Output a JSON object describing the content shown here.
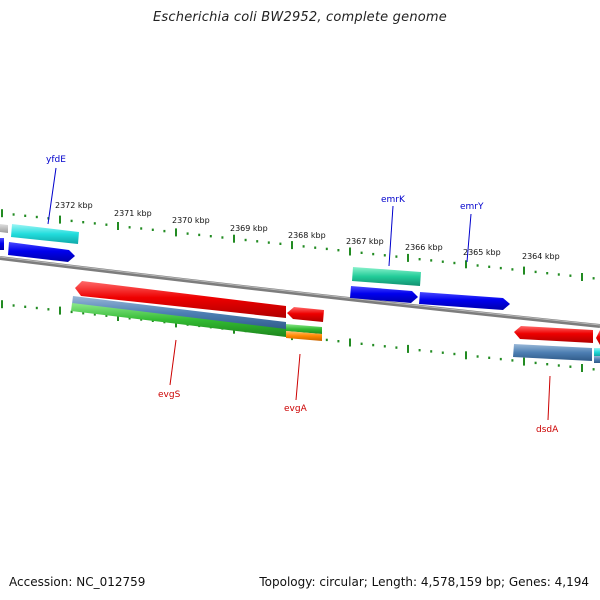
{
  "header": {
    "title": "Escherichia coli BW2952, complete genome"
  },
  "footer": {
    "accession": "Accession: NC_012759",
    "summary": "Topology: circular; Length: 4,578,159 bp; Genes: 4,194"
  },
  "ticks": [
    "2372 kbp",
    "2371 kbp",
    "2370 kbp",
    "2369 kbp",
    "2368 kbp",
    "2367 kbp",
    "2366 kbp",
    "2365 kbp",
    "2364 kbp"
  ],
  "labels": {
    "yfdE": "yfdE",
    "emrK": "emrK",
    "emrY": "emrY",
    "evgS": "evgS",
    "evgA": "evgA",
    "dsdA": "dsdA"
  },
  "colors": {
    "forward_label": "#0000cc",
    "reverse_label": "#cc0000",
    "tick": "#228b22",
    "backbone": "#808080",
    "gene_red": "#ee0000",
    "gene_blue": "#0000ee",
    "gene_cyan": "#22dddd",
    "gene_teal": "#22cc99",
    "gene_steel": "#4d7fb3",
    "gene_green": "#33bb33",
    "gene_orange": "#ff8800"
  }
}
